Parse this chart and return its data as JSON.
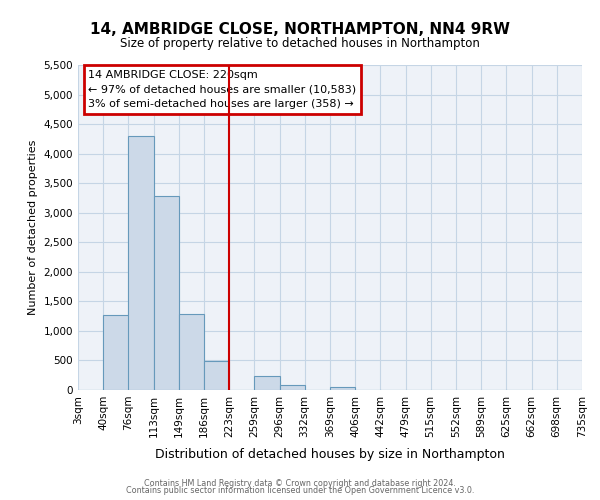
{
  "title": "14, AMBRIDGE CLOSE, NORTHAMPTON, NN4 9RW",
  "subtitle": "Size of property relative to detached houses in Northampton",
  "xlabel": "Distribution of detached houses by size in Northampton",
  "ylabel": "Number of detached properties",
  "bar_left_edges": [
    3,
    40,
    76,
    113,
    149,
    186,
    223,
    259,
    296,
    332,
    369,
    406,
    442,
    479,
    515,
    552,
    589,
    625,
    662,
    698
  ],
  "bar_heights": [
    0,
    1270,
    4300,
    3280,
    1280,
    490,
    0,
    230,
    80,
    0,
    50,
    0,
    0,
    0,
    0,
    0,
    0,
    0,
    0,
    0
  ],
  "bin_width": 37,
  "bar_color": "#ccd9e8",
  "bar_edge_color": "#6699bb",
  "vline_x": 223,
  "vline_color": "#cc0000",
  "ylim": [
    0,
    5500
  ],
  "yticks": [
    0,
    500,
    1000,
    1500,
    2000,
    2500,
    3000,
    3500,
    4000,
    4500,
    5000,
    5500
  ],
  "xtick_labels": [
    "3sqm",
    "40sqm",
    "76sqm",
    "113sqm",
    "149sqm",
    "186sqm",
    "223sqm",
    "259sqm",
    "296sqm",
    "332sqm",
    "369sqm",
    "406sqm",
    "442sqm",
    "479sqm",
    "515sqm",
    "552sqm",
    "589sqm",
    "625sqm",
    "662sqm",
    "698sqm",
    "735sqm"
  ],
  "xtick_positions": [
    3,
    40,
    76,
    113,
    149,
    186,
    223,
    259,
    296,
    332,
    369,
    406,
    442,
    479,
    515,
    552,
    589,
    625,
    662,
    698,
    735
  ],
  "annotation_title": "14 AMBRIDGE CLOSE: 220sqm",
  "annotation_line1": "← 97% of detached houses are smaller (10,583)",
  "annotation_line2": "3% of semi-detached houses are larger (358) →",
  "annotation_box_color": "#cc0000",
  "grid_color": "#c5d5e5",
  "background_color": "#eef2f8",
  "footer1": "Contains HM Land Registry data © Crown copyright and database right 2024.",
  "footer2": "Contains public sector information licensed under the Open Government Licence v3.0."
}
